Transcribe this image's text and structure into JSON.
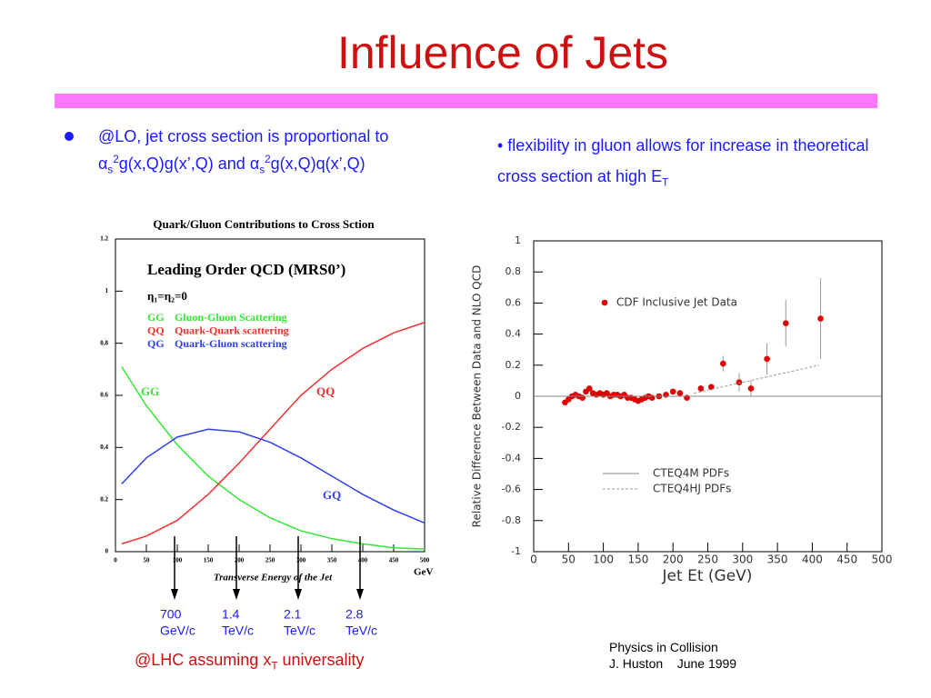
{
  "title": "Influence of  Jets",
  "left_bullet": [
    {
      "text": "@LO, jet cross section is proportional to ",
      "style": "normal"
    },
    {
      "text": "α",
      "style": "normal"
    },
    {
      "text": "s",
      "style": "sub"
    },
    {
      "text": "2",
      "style": "sup"
    },
    {
      "text": "g(x,Q)g(x’,Q) and ",
      "style": "normal"
    },
    {
      "text": "α",
      "style": "normal"
    },
    {
      "text": "s",
      "style": "sub"
    },
    {
      "text": "2",
      "style": "sup"
    },
    {
      "text": "g(x,Q)q(x’,Q)",
      "style": "normal"
    }
  ],
  "right_bullet": [
    {
      "text": "• flexibility in gluon allows for increase in theoretical cross section at high E",
      "style": "normal"
    },
    {
      "text": "T",
      "style": "sub"
    }
  ],
  "arrows": [
    {
      "x": 100,
      "value": "700",
      "unit": "GeV/c"
    },
    {
      "x": 200,
      "value": "1.4",
      "unit": "TeV/c"
    },
    {
      "x": 300,
      "value": "2.1",
      "unit": "TeV/c"
    },
    {
      "x": 400,
      "value": "2.8",
      "unit": "TeV/c"
    }
  ],
  "footer": [
    {
      "text": "@LHC assuming x",
      "style": "normal"
    },
    {
      "text": "T",
      "style": "sub"
    },
    {
      "text": " universality",
      "style": "normal"
    }
  ],
  "credit": [
    "Physics in Collision",
    "J. Huston    June 1999"
  ],
  "chart_data": [
    {
      "type": "line",
      "title": "Quark/Gluon Contributions to Cross Sction",
      "subtitle": "Leading Order QCD (MRS0’)",
      "annotation": "η₁=η₂=0",
      "x_label": "Transverse Energy of the Jet",
      "x_unit": "GeV",
      "x": [
        10,
        50,
        100,
        150,
        200,
        250,
        300,
        350,
        400,
        450,
        500
      ],
      "series": [
        {
          "code": "GG",
          "name": "Gluon-Gluon Scattering",
          "curve_label": "GG",
          "color": "#33e633",
          "values": [
            0.71,
            0.56,
            0.41,
            0.29,
            0.2,
            0.13,
            0.08,
            0.05,
            0.03,
            0.015,
            0.01
          ]
        },
        {
          "code": "QQ",
          "name": "Quark-Quark scattering",
          "curve_label": "QQ",
          "color": "#f03030",
          "values": [
            0.03,
            0.06,
            0.12,
            0.22,
            0.34,
            0.47,
            0.6,
            0.7,
            0.78,
            0.84,
            0.88
          ]
        },
        {
          "code": "QG",
          "name": "Quark-Gluon scattering",
          "curve_label": "GQ",
          "color": "#3040f0",
          "values": [
            0.26,
            0.36,
            0.44,
            0.47,
            0.46,
            0.42,
            0.36,
            0.29,
            0.22,
            0.16,
            0.11
          ]
        }
      ],
      "xlim": [
        0,
        500
      ],
      "xticks": [
        0,
        50,
        100,
        150,
        200,
        250,
        300,
        350,
        400,
        450,
        500
      ],
      "ylim": [
        0,
        1.2
      ],
      "yticks": [
        0,
        0.2,
        0.4,
        0.6,
        0.8,
        1,
        1.2
      ]
    },
    {
      "type": "scatter",
      "x_label": "Jet Et (GeV)",
      "y_label": "Relative Difference Between Data and NLO QCD",
      "series": [
        {
          "name": "CDF Inclusive Jet Data",
          "color": "#e00000",
          "x": [
            45,
            50,
            55,
            60,
            65,
            70,
            75,
            80,
            85,
            90,
            95,
            100,
            105,
            110,
            115,
            120,
            125,
            130,
            135,
            140,
            145,
            150,
            155,
            160,
            165,
            170,
            180,
            190,
            200,
            210,
            220,
            240,
            255,
            272,
            295,
            312,
            335,
            362,
            412
          ],
          "values": [
            -0.04,
            -0.02,
            0,
            0.01,
            0,
            -0.01,
            0.03,
            0.05,
            0.02,
            0.01,
            0.02,
            0.01,
            0.02,
            0,
            0.01,
            0.01,
            0,
            0.01,
            -0.01,
            -0.01,
            -0.02,
            -0.03,
            -0.02,
            -0.01,
            0,
            -0.01,
            0,
            0.01,
            0.03,
            0.02,
            -0.01,
            0.05,
            0.06,
            0.21,
            0.09,
            0.05,
            0.24,
            0.47,
            0.5
          ],
          "errors": [
            0.01,
            0.01,
            0.01,
            0.01,
            0.01,
            0.01,
            0.01,
            0.01,
            0.01,
            0.01,
            0.01,
            0.01,
            0.01,
            0.01,
            0.01,
            0.01,
            0.01,
            0.01,
            0.01,
            0.01,
            0.01,
            0.01,
            0.01,
            0.01,
            0.01,
            0.01,
            0.01,
            0.01,
            0.01,
            0.01,
            0.01,
            0.02,
            0.02,
            0.05,
            0.06,
            0.05,
            0.1,
            0.15,
            0.26
          ]
        },
        {
          "name": "CTEQ4M PDFs",
          "type": "line",
          "dash": false,
          "color": "#888888",
          "x": [
            0,
            500
          ],
          "values": [
            0,
            0
          ]
        },
        {
          "name": "CTEQ4HJ PDFs",
          "type": "line",
          "dash": true,
          "color": "#999999",
          "x": [
            230,
            410
          ],
          "values": [
            0.02,
            0.2
          ]
        }
      ],
      "xlim": [
        0,
        500
      ],
      "xticks": [
        0,
        50,
        100,
        150,
        200,
        250,
        300,
        350,
        400,
        450,
        500
      ],
      "ylim": [
        -1,
        1
      ],
      "yticks": [
        -1,
        -0.8,
        -0.6,
        -0.4,
        -0.2,
        0,
        0.2,
        0.4,
        0.6,
        0.8,
        1
      ]
    }
  ]
}
